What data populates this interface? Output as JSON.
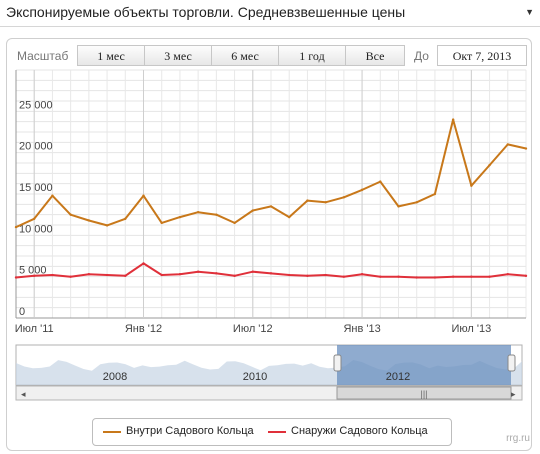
{
  "header": {
    "selector_value": "Экспонируемые объекты торговли. Средневзвешенные цены"
  },
  "range_selector": {
    "label": "Масштаб",
    "buttons": [
      "1 мес",
      "3 мес",
      "6 мес",
      "1 год",
      "Все"
    ],
    "to_label": "До",
    "to_date": "Окт 7, 2013"
  },
  "legend": {
    "items": [
      "Внутри Садового Кольца",
      "Снаружи Садового Кольца"
    ]
  },
  "watermark": "rrg.ru",
  "colors": {
    "inside": "#c8781a",
    "outside": "#e0303a",
    "navigator_fill": "#c6d4e4",
    "navigator_selected": "#6a8fbf"
  },
  "chart_data": {
    "type": "line",
    "title": "",
    "xlabel": "",
    "ylabel": "",
    "ylim": [
      0,
      30000
    ],
    "yticks": [
      0,
      5000,
      10000,
      15000,
      20000,
      25000
    ],
    "ytick_labels": [
      "0",
      "5 000",
      "10 000",
      "15 000",
      "20 000",
      "25 000"
    ],
    "xticks": [
      "2011-07",
      "2012-01",
      "2012-07",
      "2013-01",
      "2013-07"
    ],
    "xtick_labels": [
      "Июл '11",
      "Янв '12",
      "Июл '12",
      "Янв '13",
      "Июл '13"
    ],
    "xrange": [
      "2011-06",
      "2013-10"
    ],
    "grid": true,
    "legend_position": "bottom-center",
    "series": [
      {
        "name": "Внутри Садового Кольца",
        "x": [
          "2011-06",
          "2011-07",
          "2011-08",
          "2011-09",
          "2011-10",
          "2011-11",
          "2011-12",
          "2012-01",
          "2012-02",
          "2012-03",
          "2012-04",
          "2012-05",
          "2012-06",
          "2012-07",
          "2012-08",
          "2012-09",
          "2012-10",
          "2012-11",
          "2012-12",
          "2013-01",
          "2013-02",
          "2013-03",
          "2013-04",
          "2013-05",
          "2013-06",
          "2013-07",
          "2013-08",
          "2013-09",
          "2013-10"
        ],
        "values": [
          11000,
          12000,
          14800,
          12500,
          11800,
          11200,
          12000,
          14800,
          11500,
          12200,
          12800,
          12500,
          11500,
          13000,
          13500,
          12200,
          14200,
          14000,
          14600,
          15500,
          16500,
          13500,
          14000,
          15000,
          24000,
          16000,
          18500,
          21000,
          20500
        ]
      },
      {
        "name": "Снаружи Садового Кольца",
        "x": [
          "2011-06",
          "2011-07",
          "2011-08",
          "2011-09",
          "2011-10",
          "2011-11",
          "2011-12",
          "2012-01",
          "2012-02",
          "2012-03",
          "2012-04",
          "2012-05",
          "2012-06",
          "2012-07",
          "2012-08",
          "2012-09",
          "2012-10",
          "2012-11",
          "2012-12",
          "2013-01",
          "2013-02",
          "2013-03",
          "2013-04",
          "2013-05",
          "2013-06",
          "2013-07",
          "2013-08",
          "2013-09",
          "2013-10"
        ],
        "values": [
          4900,
          5100,
          5200,
          5000,
          5300,
          5200,
          5100,
          6600,
          5200,
          5300,
          5600,
          5400,
          5100,
          5600,
          5400,
          5200,
          5100,
          5200,
          5000,
          5300,
          5000,
          5000,
          4900,
          4900,
          5000,
          5000,
          5000,
          5300,
          5100
        ]
      }
    ],
    "navigator": {
      "xtick_labels": [
        "2008",
        "2010",
        "2012"
      ],
      "selected_range": [
        "2011-06",
        "2013-10"
      ]
    }
  }
}
